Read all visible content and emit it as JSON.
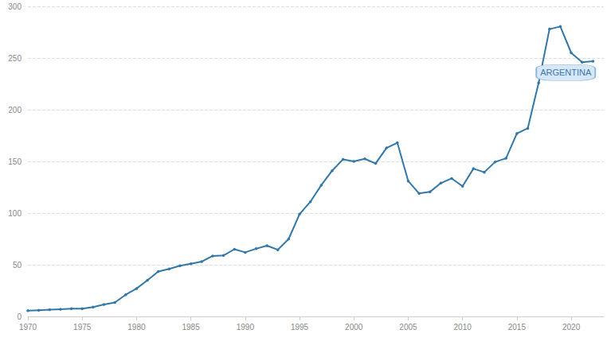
{
  "chart_data": {
    "type": "line",
    "series": [
      {
        "name": "ARGENTINA",
        "color": "#3277a8",
        "marker": "circle",
        "line_style": "solid",
        "x": [
          1970,
          1971,
          1972,
          1973,
          1974,
          1975,
          1976,
          1977,
          1978,
          1979,
          1980,
          1981,
          1982,
          1983,
          1984,
          1985,
          1986,
          1987,
          1988,
          1989,
          1990,
          1991,
          1992,
          1993,
          1994,
          1995,
          1996,
          1997,
          1998,
          1999,
          2000,
          2001,
          2002,
          2003,
          2004,
          2005,
          2006,
          2007,
          2008,
          2009,
          2010,
          2011,
          2012,
          2013,
          2014,
          2015,
          2016,
          2017,
          2018,
          2019,
          2020,
          2021,
          2022
        ],
        "values": [
          5.5,
          6,
          6.5,
          7,
          7.5,
          7.5,
          9,
          11.5,
          13.5,
          21,
          27,
          35,
          43.5,
          46,
          49,
          51,
          53,
          58.5,
          59,
          65,
          62,
          65.5,
          68.5,
          64.5,
          75,
          99,
          111,
          127,
          141,
          152,
          150,
          152.5,
          148,
          163,
          168,
          131,
          119,
          120.5,
          129,
          133.5,
          126,
          143,
          139.5,
          149.5,
          153,
          177,
          182,
          226,
          278,
          280.5,
          255,
          246,
          247
        ]
      }
    ],
    "annotations": [
      {
        "text": "ARGENTINA",
        "x": 2019.5,
        "y": 236
      }
    ],
    "xlim": [
      1970,
      2023
    ],
    "xticks": [
      1970,
      1975,
      1980,
      1985,
      1990,
      1995,
      2000,
      2005,
      2010,
      2015,
      2020
    ],
    "ylim": [
      0,
      300
    ],
    "yticks": [
      0,
      50,
      100,
      150,
      200,
      250,
      300
    ],
    "grid": true
  }
}
